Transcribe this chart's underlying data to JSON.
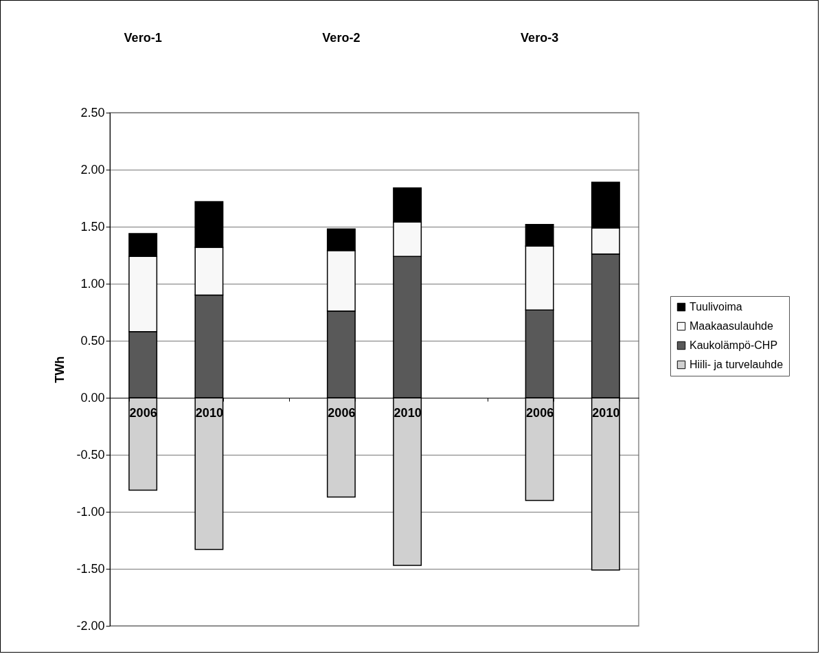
{
  "chart_data": {
    "type": "bar",
    "stacked": true,
    "ylabel": "TWh",
    "categories": [
      "2006",
      "2010",
      null,
      "2006",
      "2010",
      null,
      "2006",
      "2010"
    ],
    "series": [
      {
        "name": "Hiili- ja turvelauhde",
        "color": "#d0d0d0",
        "values": [
          -0.81,
          -1.33,
          null,
          -0.87,
          -1.47,
          null,
          -0.9,
          -1.51
        ]
      },
      {
        "name": "Kaukolämpö-CHP",
        "color": "#595959",
        "values": [
          0.58,
          0.9,
          null,
          0.76,
          1.24,
          null,
          0.77,
          1.26
        ]
      },
      {
        "name": "Maakaasulauhde",
        "color": "#f8f8f8",
        "values": [
          0.66,
          0.42,
          null,
          0.53,
          0.3,
          null,
          0.56,
          0.23
        ]
      },
      {
        "name": "Tuulivoima",
        "color": "#000000",
        "values": [
          0.2,
          0.4,
          null,
          0.19,
          0.3,
          null,
          0.19,
          0.4
        ]
      }
    ],
    "ylim": [
      -2.0,
      2.5
    ],
    "yticks": [
      {
        "value": -2.0,
        "label": "-2.00"
      },
      {
        "value": -1.5,
        "label": "-1.50"
      },
      {
        "value": -1.0,
        "label": "-1.00"
      },
      {
        "value": -0.5,
        "label": "-0.50"
      },
      {
        "value": 0,
        "label": "0.00"
      },
      {
        "value": 0.5,
        "label": "0.50"
      },
      {
        "value": 1.0,
        "label": "1.00"
      },
      {
        "value": 1.5,
        "label": "1.50"
      },
      {
        "value": 2.0,
        "label": "2.00"
      },
      {
        "value": 2.5,
        "label": "2.50"
      }
    ],
    "annotations": [
      "Vero-1",
      "Vero-2",
      "Vero-3"
    ],
    "grid": "y",
    "legend": "right"
  }
}
